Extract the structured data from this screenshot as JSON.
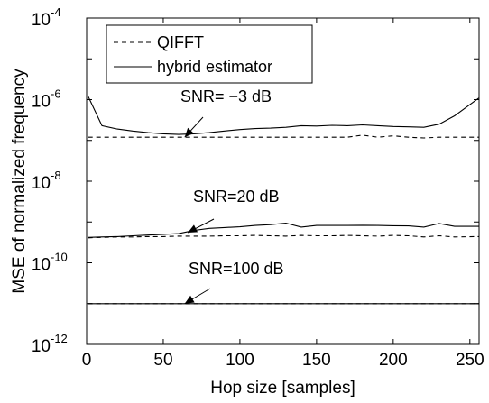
{
  "chart_data": {
    "type": "line",
    "xlabel": "Hop size [samples]",
    "ylabel": "MSE of normalized frequency",
    "xlim": [
      0,
      256
    ],
    "ylim": [
      1e-12,
      0.0001
    ],
    "yscale": "log",
    "grid": false,
    "legend_position": "top-left",
    "xticks": [
      0,
      50,
      100,
      150,
      200,
      250
    ],
    "xtick_labels": [
      "0",
      "50",
      "100",
      "150",
      "200",
      "250"
    ],
    "yticks": [
      1e-12,
      1e-10,
      1e-08,
      1e-06,
      0.0001
    ],
    "ytick_labels": [
      {
        "base": "10",
        "exp": "-12"
      },
      {
        "base": "10",
        "exp": "-10"
      },
      {
        "base": "10",
        "exp": "-8"
      },
      {
        "base": "10",
        "exp": "-6"
      },
      {
        "base": "10",
        "exp": "-4"
      }
    ],
    "legend": [
      {
        "label": "QIFFT",
        "style": "dashed"
      },
      {
        "label": "hybrid estimator",
        "style": "solid"
      }
    ],
    "annotations": [
      {
        "text": "SNR= −3 dB",
        "x": 64,
        "y": 1.2e-07
      },
      {
        "text": "SNR=20 dB",
        "x": 66,
        "y": 5.5e-10
      },
      {
        "text": "SNR=100 dB",
        "x": 64,
        "y": 1e-11
      }
    ],
    "series": [
      {
        "group": "SNR= −3 dB",
        "estimator": "QIFFT",
        "style": "dashed",
        "x": [
          1,
          10,
          20,
          30,
          40,
          50,
          60,
          70,
          80,
          90,
          100,
          110,
          120,
          130,
          140,
          150,
          160,
          170,
          180,
          190,
          200,
          210,
          220,
          230,
          240,
          256
        ],
        "y": [
          1.2e-07,
          1.2e-07,
          1.2e-07,
          1.2e-07,
          1.2e-07,
          1.2e-07,
          1.2e-07,
          1.2e-07,
          1.2e-07,
          1.2e-07,
          1.2e-07,
          1.2e-07,
          1.2e-07,
          1.2e-07,
          1.2e-07,
          1.2e-07,
          1.2e-07,
          1.2e-07,
          1.35e-07,
          1.2e-07,
          1.3e-07,
          1.2e-07,
          1.15e-07,
          1.2e-07,
          1.2e-07,
          1.2e-07
        ]
      },
      {
        "group": "SNR= −3 dB",
        "estimator": "hybrid estimator",
        "style": "solid",
        "x": [
          1,
          10,
          20,
          30,
          40,
          50,
          60,
          70,
          80,
          90,
          100,
          110,
          120,
          130,
          140,
          150,
          160,
          170,
          180,
          190,
          200,
          210,
          220,
          230,
          240,
          256
        ],
        "y": [
          1.2e-06,
          2.3e-07,
          1.9e-07,
          1.7e-07,
          1.55e-07,
          1.45e-07,
          1.4e-07,
          1.45e-07,
          1.55e-07,
          1.7e-07,
          1.85e-07,
          1.95e-07,
          2e-07,
          2.1e-07,
          2.3e-07,
          2.25e-07,
          2.35e-07,
          2.3e-07,
          2.4e-07,
          2.3e-07,
          2.2e-07,
          2.15e-07,
          2.1e-07,
          2.5e-07,
          4e-07,
          1.1e-06
        ]
      },
      {
        "group": "SNR=20 dB",
        "estimator": "QIFFT",
        "style": "dashed",
        "x": [
          1,
          10,
          20,
          30,
          40,
          50,
          60,
          70,
          80,
          90,
          100,
          110,
          120,
          130,
          140,
          150,
          160,
          170,
          180,
          190,
          200,
          210,
          220,
          230,
          240,
          256
        ],
        "y": [
          4.1e-10,
          4.2e-10,
          4.3e-10,
          4.3e-10,
          4.4e-10,
          4.4e-10,
          4.5e-10,
          4.5e-10,
          4.5e-10,
          4.6e-10,
          4.6e-10,
          4.7e-10,
          4.6e-10,
          4.5e-10,
          4.7e-10,
          4.6e-10,
          4.6e-10,
          4.7e-10,
          4.6e-10,
          4.5e-10,
          4.7e-10,
          4.6e-10,
          4.3e-10,
          4.6e-10,
          4.3e-10,
          4.4e-10
        ]
      },
      {
        "group": "SNR=20 dB",
        "estimator": "hybrid estimator",
        "style": "solid",
        "x": [
          1,
          10,
          20,
          30,
          40,
          50,
          60,
          70,
          80,
          90,
          100,
          110,
          120,
          130,
          140,
          150,
          160,
          170,
          180,
          190,
          200,
          210,
          220,
          230,
          240,
          256
        ],
        "y": [
          4.2e-10,
          4.3e-10,
          4.4e-10,
          4.6e-10,
          4.8e-10,
          5e-10,
          5.2e-10,
          6.2e-10,
          7e-10,
          7.3e-10,
          7.6e-10,
          8.2e-10,
          8.6e-10,
          9.4e-10,
          7.5e-10,
          8.2e-10,
          8.2e-10,
          8.2e-10,
          8.3e-10,
          8.2e-10,
          8.1e-10,
          8e-10,
          7.5e-10,
          9.2e-10,
          7.8e-10,
          7.8e-10
        ]
      },
      {
        "group": "SNR=100 dB",
        "estimator": "QIFFT",
        "style": "dashed",
        "x": [
          1,
          256
        ],
        "y": [
          1e-11,
          1e-11
        ]
      },
      {
        "group": "SNR=100 dB",
        "estimator": "hybrid estimator",
        "style": "solid",
        "x": [
          1,
          256
        ],
        "y": [
          1e-11,
          1e-11
        ]
      }
    ]
  }
}
